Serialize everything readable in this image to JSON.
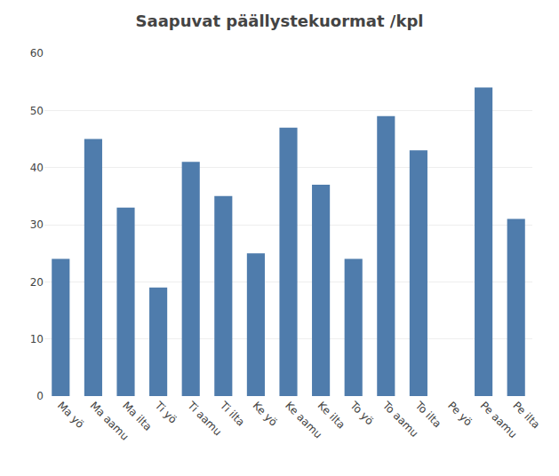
{
  "chart_data": {
    "type": "bar",
    "title": "Saapuvat päällystekuormat /kpl",
    "categories": [
      "Ma yö",
      "Ma aamu",
      "Ma ilta",
      "Ti yö",
      "Ti aamu",
      "Ti ilta",
      "Ke yö",
      "Ke aamu",
      "Ke ilta",
      "To yö",
      "To aamu",
      "To ilta",
      "Pe yö",
      "Pe aamu",
      "Pe ilta"
    ],
    "values": [
      24,
      45,
      33,
      19,
      41,
      35,
      25,
      47,
      37,
      24,
      49,
      43,
      0,
      54,
      31
    ],
    "color": "#4f7cac",
    "ylim": [
      0,
      60
    ],
    "yticks": [
      0,
      10,
      20,
      30,
      40,
      50,
      60
    ],
    "grid": true
  }
}
